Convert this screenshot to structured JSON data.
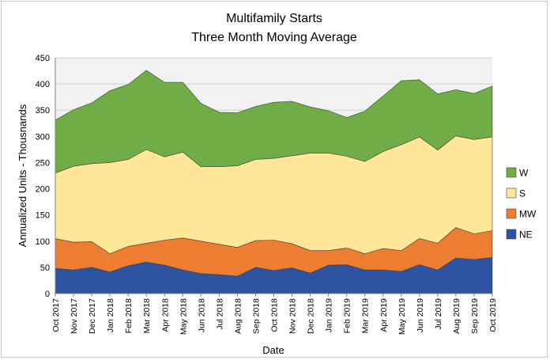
{
  "chart_data": {
    "type": "area",
    "stacked": true,
    "title": "Multifamily Starts",
    "subtitle": "Three Month Moving Average",
    "xlabel": "Date",
    "ylabel": "Annualized Units - Thousnands",
    "ylim": [
      0,
      450
    ],
    "yticks": [
      0,
      50,
      100,
      150,
      200,
      250,
      300,
      350,
      400,
      450
    ],
    "grid": "horizontal",
    "legend_position": "right",
    "categories": [
      "Oct 2017",
      "Nov 2017",
      "Dec 2017",
      "Jan 2018",
      "Feb 2018",
      "Mar 2018",
      "Apr 2018",
      "May 2018",
      "Jun 2018",
      "Jul 2018",
      "Aug 2018",
      "Sep 2018",
      "Oct 2018",
      "Nov 2018",
      "Dec 2018",
      "Jan 2019",
      "Feb 2019",
      "Mar 2019",
      "Apr 2019",
      "May 2019",
      "Jun 2019",
      "Jul 2019",
      "Aug 2019",
      "Sep 2019",
      "Oct 2019"
    ],
    "series": [
      {
        "name": "NE",
        "color": "#2e53a1",
        "values": [
          48,
          45,
          50,
          41,
          53,
          60,
          54,
          45,
          38,
          36,
          33,
          50,
          44,
          49,
          39,
          54,
          55,
          45,
          45,
          42,
          55,
          45,
          68,
          65,
          69
        ]
      },
      {
        "name": "MW",
        "color": "#ed7d31",
        "values": [
          57,
          53,
          49,
          35,
          37,
          36,
          48,
          61,
          62,
          58,
          55,
          51,
          58,
          46,
          43,
          28,
          32,
          31,
          41,
          40,
          50,
          51,
          58,
          49,
          51
        ]
      },
      {
        "name": "S",
        "color": "#ffe699",
        "values": [
          125,
          145,
          149,
          174,
          166,
          179,
          159,
          164,
          142,
          148,
          156,
          155,
          156,
          168,
          186,
          186,
          175,
          176,
          185,
          202,
          194,
          178,
          175,
          180,
          179
        ]
      },
      {
        "name": "W",
        "color": "#70ad47",
        "values": [
          101,
          108,
          116,
          137,
          143,
          151,
          142,
          133,
          121,
          104,
          101,
          101,
          107,
          104,
          88,
          81,
          74,
          96,
          106,
          122,
          109,
          107,
          88,
          88,
          97
        ]
      }
    ],
    "legend_order": [
      "W",
      "S",
      "MW",
      "NE"
    ]
  }
}
